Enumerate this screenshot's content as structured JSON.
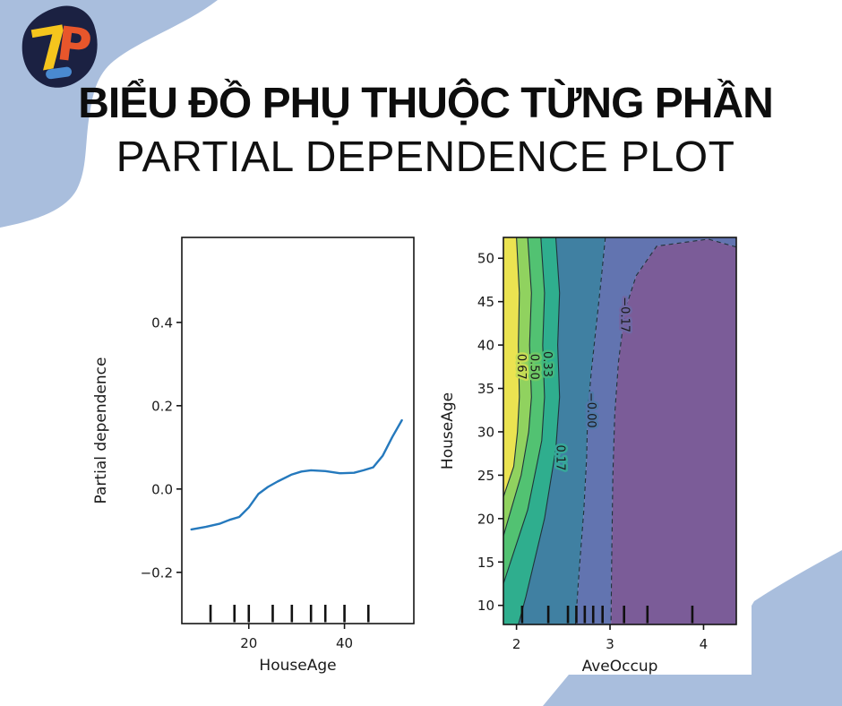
{
  "colors": {
    "accent": "#a9bedd",
    "logo_blob": "#1b2142",
    "logo_seven": "#f5c51d",
    "logo_p": "#e8562b",
    "logo_bar": "#4a8ad0",
    "ink": "#151515"
  },
  "logo": {
    "seven": "7",
    "p": "P"
  },
  "header": {
    "title_vi": "BIỂU ĐỒ PHỤ THUỘC TỪNG PHẦN",
    "title_en": "PARTIAL DEPENDENCE PLOT"
  },
  "chart_data": [
    {
      "type": "line",
      "xlabel": "HouseAge",
      "ylabel": "Partial dependence",
      "xlim": [
        6,
        54.5
      ],
      "ylim": [
        -0.323,
        0.604
      ],
      "xticks": [
        {
          "v": 20,
          "label": "20"
        },
        {
          "v": 40,
          "label": "40"
        }
      ],
      "yticks": [
        {
          "v": 0.4,
          "label": "0.4"
        },
        {
          "v": 0.2,
          "label": "0.2"
        },
        {
          "v": 0.0,
          "label": "0.0"
        },
        {
          "v": -0.2,
          "label": "−0.2"
        }
      ],
      "line_color": "#2579bd",
      "x": [
        8,
        11,
        14,
        16,
        18,
        20,
        22,
        24,
        26,
        29,
        31,
        33,
        36,
        39,
        42,
        44,
        46,
        48,
        50,
        52
      ],
      "y": [
        -0.097,
        -0.091,
        -0.083,
        -0.074,
        -0.067,
        -0.044,
        -0.012,
        0.005,
        0.018,
        0.035,
        0.042,
        0.045,
        0.043,
        0.038,
        0.039,
        0.045,
        0.052,
        0.08,
        0.125,
        0.165
      ],
      "rug_x": [
        12,
        17,
        20,
        25,
        29,
        33,
        36,
        40,
        45
      ]
    },
    {
      "type": "contour",
      "xlabel": "AveOccup",
      "ylabel": "HouseAge",
      "xlim": [
        1.86,
        4.35
      ],
      "ylim": [
        7.8,
        52.4
      ],
      "xticks": [
        {
          "v": 2,
          "label": "2"
        },
        {
          "v": 3,
          "label": "3"
        },
        {
          "v": 4,
          "label": "4"
        }
      ],
      "yticks": [
        {
          "v": 10,
          "label": "10"
        },
        {
          "v": 15,
          "label": "15"
        },
        {
          "v": 20,
          "label": "20"
        },
        {
          "v": 25,
          "label": "25"
        },
        {
          "v": 30,
          "label": "30"
        },
        {
          "v": 35,
          "label": "35"
        },
        {
          "v": 40,
          "label": "40"
        },
        {
          "v": 45,
          "label": "45"
        },
        {
          "v": 50,
          "label": "50"
        }
      ],
      "rug_x": [
        2.06,
        2.34,
        2.55,
        2.64,
        2.73,
        2.82,
        2.92,
        3.15,
        3.4,
        3.88
      ],
      "levels": [
        0.67,
        0.5,
        0.33,
        0.17,
        -0.0,
        -0.17
      ],
      "bands": [
        {
          "color": "#ebe351",
          "points": [
            [
              1.86,
              52.4
            ],
            [
              2.0,
              52.4
            ],
            [
              2.03,
              46
            ],
            [
              2.02,
              40
            ],
            [
              2.03,
              34
            ],
            [
              2.01,
              30
            ],
            [
              1.97,
              26
            ],
            [
              1.86,
              22.5
            ]
          ]
        },
        {
          "color": "#90d25f",
          "points": [
            [
              2.0,
              52.4
            ],
            [
              2.12,
              52.4
            ],
            [
              2.16,
              46
            ],
            [
              2.14,
              40
            ],
            [
              2.16,
              34
            ],
            [
              2.13,
              30
            ],
            [
              2.05,
              25
            ],
            [
              1.86,
              18
            ],
            [
              1.86,
              22.5
            ],
            [
              1.97,
              26
            ],
            [
              2.01,
              30
            ],
            [
              2.03,
              34
            ],
            [
              2.02,
              40
            ],
            [
              2.03,
              46
            ]
          ]
        },
        {
          "color": "#52c272",
          "points": [
            [
              2.12,
              52.4
            ],
            [
              2.26,
              52.4
            ],
            [
              2.3,
              46
            ],
            [
              2.28,
              40
            ],
            [
              2.3,
              34
            ],
            [
              2.27,
              29
            ],
            [
              2.12,
              21
            ],
            [
              1.86,
              12.5
            ],
            [
              1.86,
              18
            ],
            [
              2.05,
              25
            ],
            [
              2.13,
              30
            ],
            [
              2.16,
              34
            ],
            [
              2.14,
              40
            ],
            [
              2.16,
              46
            ]
          ]
        },
        {
          "color": "#2fae8e",
          "points": [
            [
              2.26,
              52.4
            ],
            [
              2.42,
              52.4
            ],
            [
              2.46,
              46
            ],
            [
              2.44,
              40
            ],
            [
              2.46,
              34
            ],
            [
              2.42,
              28
            ],
            [
              2.3,
              20
            ],
            [
              2.1,
              11
            ],
            [
              2.02,
              7.8
            ],
            [
              1.86,
              7.8
            ],
            [
              1.86,
              12.5
            ],
            [
              2.12,
              21
            ],
            [
              2.27,
              29
            ],
            [
              2.3,
              34
            ],
            [
              2.28,
              40
            ],
            [
              2.3,
              46
            ]
          ]
        },
        {
          "color": "#4080a2",
          "points": [
            [
              2.42,
              52.4
            ],
            [
              2.95,
              52.4
            ],
            [
              2.9,
              47
            ],
            [
              2.85,
              42
            ],
            [
              2.8,
              37
            ],
            [
              2.76,
              32
            ],
            [
              2.75,
              27
            ],
            [
              2.72,
              21
            ],
            [
              2.67,
              14
            ],
            [
              2.63,
              7.8
            ],
            [
              2.02,
              7.8
            ],
            [
              2.1,
              11
            ],
            [
              2.3,
              20
            ],
            [
              2.42,
              28
            ],
            [
              2.46,
              34
            ],
            [
              2.44,
              40
            ],
            [
              2.46,
              46
            ]
          ]
        },
        {
          "color": "#6274b0",
          "points": [
            [
              2.95,
              52.4
            ],
            [
              4.35,
              52.4
            ],
            [
              4.35,
              51.3
            ],
            [
              4.05,
              52.2
            ],
            [
              3.5,
              51.4
            ],
            [
              3.28,
              48
            ],
            [
              3.16,
              44
            ],
            [
              3.09,
              38
            ],
            [
              3.05,
              32
            ],
            [
              3.03,
              25
            ],
            [
              3.02,
              17
            ],
            [
              3.01,
              7.8
            ],
            [
              2.63,
              7.8
            ],
            [
              2.67,
              14
            ],
            [
              2.72,
              21
            ],
            [
              2.75,
              27
            ],
            [
              2.76,
              32
            ],
            [
              2.8,
              37
            ],
            [
              2.85,
              42
            ],
            [
              2.9,
              47
            ]
          ]
        },
        {
          "color": "#7b5c98",
          "points": [
            [
              4.35,
              51.3
            ],
            [
              4.05,
              52.2
            ],
            [
              3.5,
              51.4
            ],
            [
              3.28,
              48
            ],
            [
              3.16,
              44
            ],
            [
              3.09,
              38
            ],
            [
              3.05,
              32
            ],
            [
              3.03,
              25
            ],
            [
              3.02,
              17
            ],
            [
              3.01,
              7.8
            ],
            [
              4.35,
              7.8
            ]
          ]
        }
      ],
      "lines": [
        {
          "label": "0.67",
          "dashed": false,
          "points": [
            [
              2.0,
              52.4
            ],
            [
              2.03,
              46
            ],
            [
              2.02,
              40
            ],
            [
              2.03,
              34
            ],
            [
              2.01,
              30
            ],
            [
              1.97,
              26
            ],
            [
              1.86,
              22.5
            ]
          ]
        },
        {
          "label": "0.50",
          "dashed": false,
          "points": [
            [
              2.12,
              52.4
            ],
            [
              2.16,
              46
            ],
            [
              2.14,
              40
            ],
            [
              2.16,
              34
            ],
            [
              2.13,
              30
            ],
            [
              2.05,
              25
            ],
            [
              1.86,
              18
            ]
          ]
        },
        {
          "label": "0.33",
          "dashed": false,
          "points": [
            [
              2.26,
              52.4
            ],
            [
              2.3,
              46
            ],
            [
              2.28,
              40
            ],
            [
              2.3,
              34
            ],
            [
              2.27,
              29
            ],
            [
              2.12,
              21
            ],
            [
              1.86,
              12.5
            ]
          ]
        },
        {
          "label": "0.17",
          "dashed": false,
          "points": [
            [
              2.42,
              52.4
            ],
            [
              2.46,
              46
            ],
            [
              2.44,
              40
            ],
            [
              2.46,
              34
            ],
            [
              2.42,
              28
            ],
            [
              2.3,
              20
            ],
            [
              2.1,
              11
            ],
            [
              2.02,
              7.8
            ]
          ]
        },
        {
          "label": "−0.00",
          "dashed": true,
          "points": [
            [
              2.95,
              52.4
            ],
            [
              2.9,
              47
            ],
            [
              2.85,
              42
            ],
            [
              2.8,
              37
            ],
            [
              2.76,
              32
            ],
            [
              2.75,
              27
            ],
            [
              2.72,
              21
            ],
            [
              2.67,
              14
            ],
            [
              2.63,
              7.8
            ]
          ]
        },
        {
          "label": "−0.17",
          "dashed": true,
          "points": [
            [
              4.35,
              51.3
            ],
            [
              4.05,
              52.2
            ],
            [
              3.5,
              51.4
            ],
            [
              3.28,
              48
            ],
            [
              3.16,
              44
            ],
            [
              3.09,
              38
            ],
            [
              3.05,
              32
            ],
            [
              3.03,
              25
            ],
            [
              3.02,
              17
            ],
            [
              3.01,
              7.8
            ]
          ]
        }
      ],
      "line_labels": [
        {
          "text": "0.67",
          "x": 2.015,
          "y": 37.5,
          "halo": "#c6dc55"
        },
        {
          "text": "0.50",
          "x": 2.15,
          "y": 37.5,
          "halo": "#6fc966"
        },
        {
          "text": "0.33",
          "x": 2.29,
          "y": 37.8,
          "halo": "#41b77f"
        },
        {
          "text": "0.17",
          "x": 2.43,
          "y": 27.0,
          "halo": "#37a79a"
        },
        {
          "text": "−0.00",
          "x": 2.76,
          "y": 32.5,
          "halo": "#5078a9"
        },
        {
          "text": "−0.17",
          "x": 3.12,
          "y": 43.5,
          "halo": "#6f68a4"
        }
      ]
    }
  ]
}
